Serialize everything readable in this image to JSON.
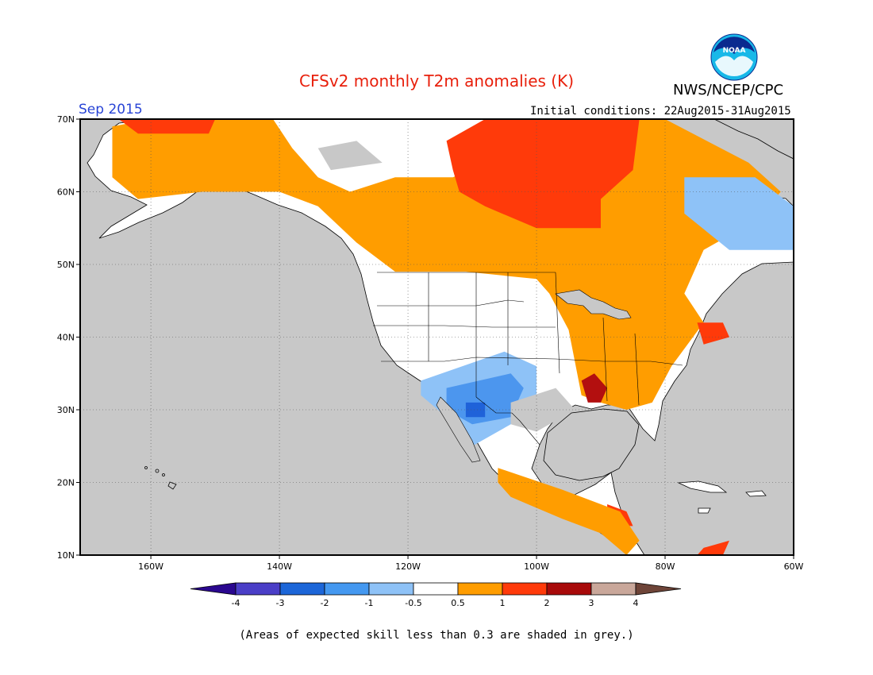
{
  "title": "CFSv2 monthly T2m anomalies (K)",
  "agency": "NWS/NCEP/CPC",
  "logo_text": "NOAA",
  "valid_month": "Sep 2015",
  "initial_conditions": "Initial conditions: 22Aug2015-31Aug2015",
  "footnote": "(Areas of expected skill less than 0.3 are shaded in grey.)",
  "map": {
    "lon_range": [
      -171,
      -60
    ],
    "lat_range": [
      10,
      70
    ],
    "lat_ticks": [
      {
        "value": 70,
        "label": "70N"
      },
      {
        "value": 60,
        "label": "60N"
      },
      {
        "value": 50,
        "label": "50N"
      },
      {
        "value": 40,
        "label": "40N"
      },
      {
        "value": 30,
        "label": "30N"
      },
      {
        "value": 20,
        "label": "20N"
      },
      {
        "value": 10,
        "label": "10N"
      }
    ],
    "lon_ticks": [
      {
        "value": -160,
        "label": "160W"
      },
      {
        "value": -140,
        "label": "140W"
      },
      {
        "value": -120,
        "label": "120W"
      },
      {
        "value": -100,
        "label": "100W"
      },
      {
        "value": -80,
        "label": "80W"
      },
      {
        "value": -60,
        "label": "60W"
      }
    ],
    "colors": {
      "low_skill": "#c8c8c8",
      "neutral": "#ffffff",
      "plus_0_5": "#ff9d00",
      "plus_1": "#ff3a0a",
      "plus_2": "#b30f0f",
      "minus_0_5": "#8ec2f7",
      "minus_1": "#4c96ee",
      "minus_2": "#1f62d9",
      "minus_3": "#3a2cb5"
    }
  },
  "colorbar": {
    "labels": [
      "-4",
      "-3",
      "-2",
      "-1",
      "-0.5",
      "0.5",
      "1",
      "2",
      "3",
      "4"
    ],
    "colors": [
      "#2a078f",
      "#4a3ec7",
      "#1c66d8",
      "#4498f0",
      "#8ec2f7",
      "#ffffff",
      "#ff9d00",
      "#ff3a0a",
      "#a80a0a",
      "#c9a79a",
      "#6e4438"
    ]
  },
  "anomaly_regions": [
    {
      "category": "plus_0_5",
      "polygon": [
        [
          -166,
          69
        ],
        [
          -160,
          70
        ],
        [
          -141,
          70
        ],
        [
          -138,
          66
        ],
        [
          -134,
          62
        ],
        [
          -129,
          60
        ],
        [
          -122,
          62
        ],
        [
          -113,
          62
        ],
        [
          -108,
          64
        ],
        [
          -110,
          68
        ],
        [
          -100,
          70
        ],
        [
          -80,
          70
        ],
        [
          -67,
          64
        ],
        [
          -62,
          60
        ],
        [
          -66,
          56
        ],
        [
          -74,
          52
        ],
        [
          -77,
          46
        ],
        [
          -74,
          42
        ],
        [
          -79,
          36
        ],
        [
          -82,
          31
        ],
        [
          -86,
          30
        ],
        [
          -90,
          31
        ],
        [
          -93,
          32
        ],
        [
          -95,
          41
        ],
        [
          -98,
          46
        ],
        [
          -100,
          48
        ],
        [
          -111,
          49
        ],
        [
          -122,
          49
        ],
        [
          -128,
          53
        ],
        [
          -134,
          58
        ],
        [
          -140,
          60
        ],
        [
          -152,
          60
        ],
        [
          -162,
          59
        ],
        [
          -166,
          62
        ]
      ]
    },
    {
      "category": "plus_1",
      "polygon": [
        [
          -165,
          70
        ],
        [
          -150,
          70
        ],
        [
          -151,
          68
        ],
        [
          -162,
          68
        ]
      ]
    },
    {
      "category": "plus_1",
      "polygon": [
        [
          -114,
          67
        ],
        [
          -108,
          70
        ],
        [
          -84,
          70
        ],
        [
          -85,
          63
        ],
        [
          -90,
          59
        ],
        [
          -90,
          55
        ],
        [
          -100,
          55
        ],
        [
          -108,
          58
        ],
        [
          -112,
          60
        ],
        [
          -113,
          63
        ]
      ]
    },
    {
      "category": "plus_2",
      "polygon": [
        [
          -93,
          34
        ],
        [
          -91,
          35
        ],
        [
          -89,
          33
        ],
        [
          -90,
          31
        ],
        [
          -92,
          31
        ]
      ]
    },
    {
      "category": "plus_1",
      "polygon": [
        [
          -75,
          42
        ],
        [
          -71,
          42
        ],
        [
          -70,
          40
        ],
        [
          -74,
          39
        ]
      ]
    },
    {
      "category": "plus_1",
      "polygon": [
        [
          -89,
          17
        ],
        [
          -86,
          16
        ],
        [
          -85,
          14
        ],
        [
          -89,
          14
        ]
      ]
    },
    {
      "category": "plus_0_5",
      "polygon": [
        [
          -106,
          22
        ],
        [
          -96,
          19
        ],
        [
          -87,
          16
        ],
        [
          -84,
          12
        ],
        [
          -86,
          10
        ],
        [
          -90,
          13
        ],
        [
          -96,
          15
        ],
        [
          -104,
          18
        ],
        [
          -106,
          20
        ]
      ]
    },
    {
      "category": "plus_1",
      "polygon": [
        [
          -74,
          11
        ],
        [
          -70,
          12
        ],
        [
          -71,
          10
        ],
        [
          -75,
          10
        ]
      ]
    },
    {
      "category": "minus_0_5",
      "polygon": [
        [
          -77,
          62
        ],
        [
          -66,
          62
        ],
        [
          -60,
          58
        ],
        [
          -60,
          52
        ],
        [
          -70,
          52
        ],
        [
          -77,
          57
        ]
      ]
    },
    {
      "category": "minus_0_5",
      "polygon": [
        [
          -118,
          34
        ],
        [
          -105,
          38
        ],
        [
          -100,
          36
        ],
        [
          -100,
          32
        ],
        [
          -104,
          28
        ],
        [
          -110,
          25
        ],
        [
          -114,
          29
        ],
        [
          -118,
          32
        ]
      ]
    },
    {
      "category": "minus_1",
      "polygon": [
        [
          -114,
          33
        ],
        [
          -104,
          35
        ],
        [
          -102,
          33
        ],
        [
          -104,
          29
        ],
        [
          -110,
          28
        ],
        [
          -114,
          30
        ]
      ]
    },
    {
      "category": "minus_2",
      "polygon": [
        [
          -111,
          31
        ],
        [
          -108,
          31
        ],
        [
          -108,
          29
        ],
        [
          -111,
          29
        ]
      ]
    },
    {
      "category": "low_skill",
      "polygon": [
        [
          -134,
          66
        ],
        [
          -128,
          67
        ],
        [
          -124,
          64
        ],
        [
          -132,
          63
        ]
      ]
    },
    {
      "category": "low_skill",
      "polygon": [
        [
          -104,
          31
        ],
        [
          -97,
          33
        ],
        [
          -94,
          30
        ],
        [
          -100,
          27
        ],
        [
          -104,
          28
        ]
      ]
    },
    {
      "category": "low_skill",
      "polygon": [
        [
          -98,
          25
        ],
        [
          -93,
          25
        ],
        [
          -93,
          20
        ],
        [
          -98,
          20
        ]
      ]
    }
  ]
}
